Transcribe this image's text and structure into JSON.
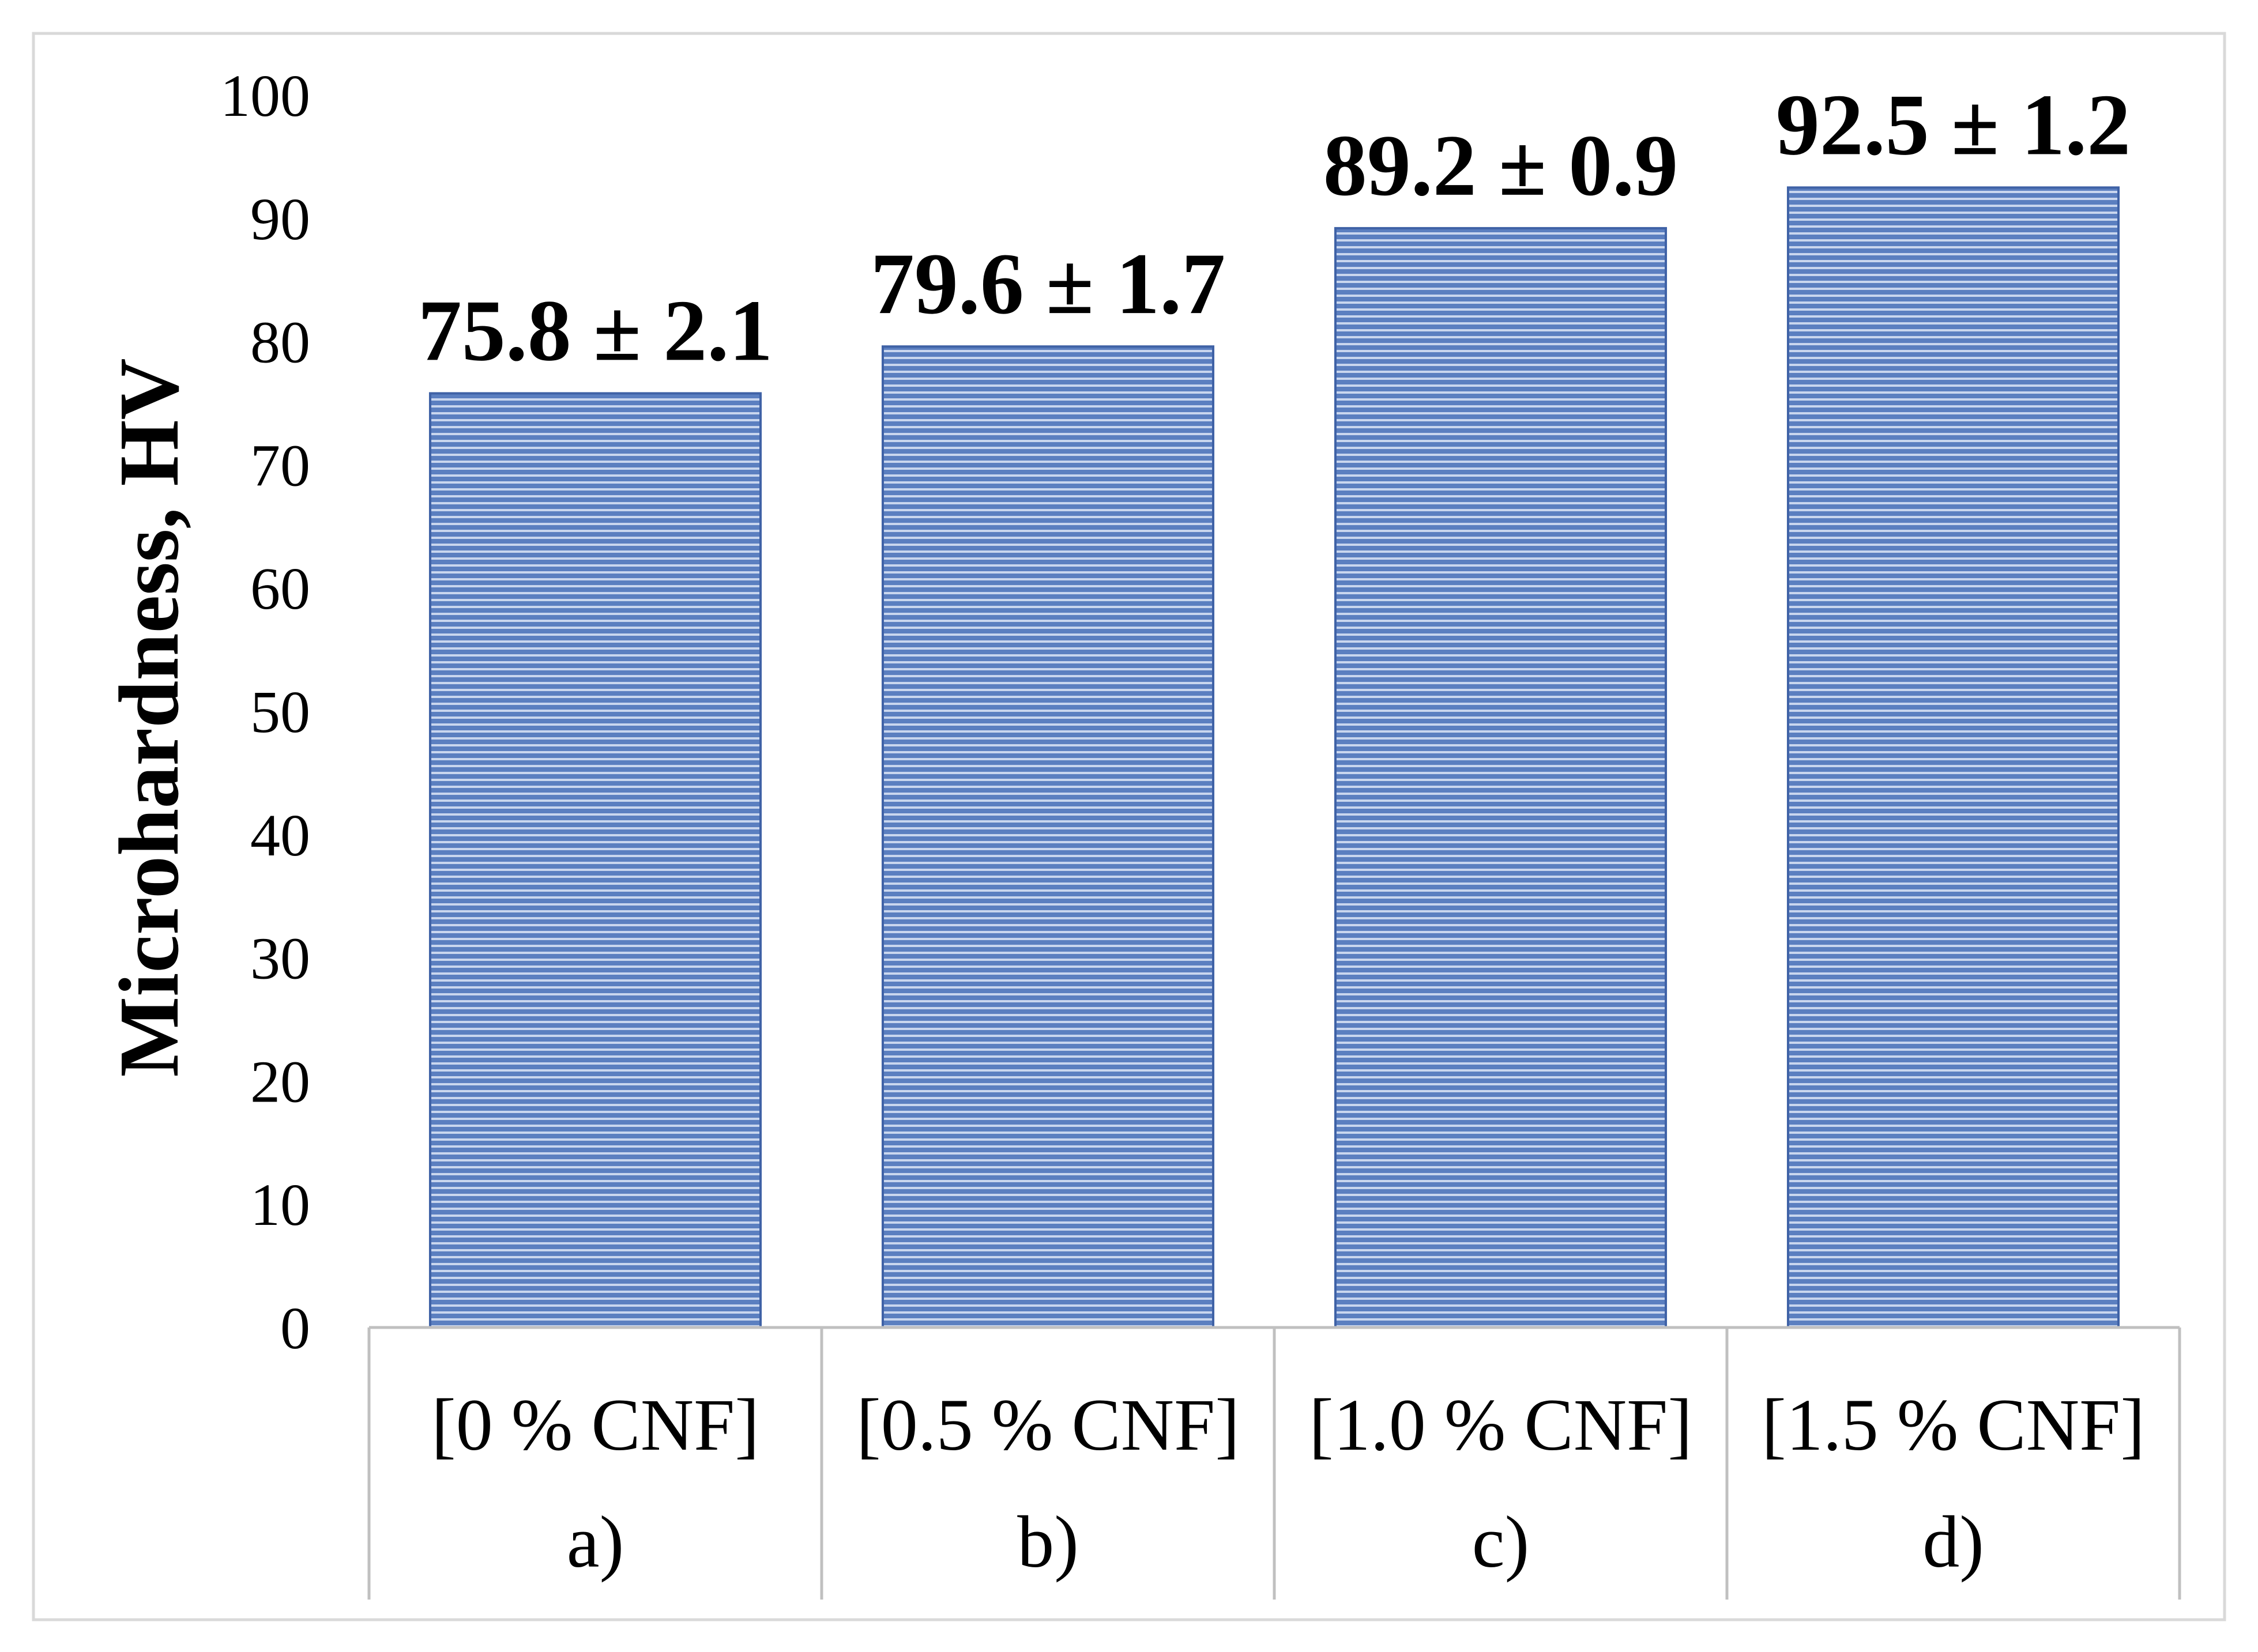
{
  "chart_data": {
    "type": "bar",
    "categories": [
      "[0 % CNF]",
      "[0.5 % CNF]",
      "[1.0 % CNF]",
      "[1.5 % CNF]"
    ],
    "group_labels": [
      "a)",
      "b)",
      "c)",
      "d)"
    ],
    "values": [
      75.8,
      79.6,
      89.2,
      92.5
    ],
    "errors": [
      2.1,
      1.7,
      0.9,
      1.2
    ],
    "data_labels": [
      "75.8 ± 2.1",
      "79.6 ± 1.7",
      "89.2 ± 0.9",
      "92.5 ± 1.2"
    ],
    "ylabel": "Microhardness, HV",
    "ylim": [
      0,
      100
    ],
    "yticks": [
      0,
      10,
      20,
      30,
      40,
      50,
      60,
      70,
      80,
      90,
      100
    ],
    "grid": false,
    "legend": "none",
    "colors": {
      "bar_fill": "#5b7fc0",
      "bar_stripe": "#c9d6ee",
      "bar_edge": "#3f62a6",
      "axis_table_lines": "#c0c0c0",
      "frame_border": "#d9d9d9"
    }
  }
}
